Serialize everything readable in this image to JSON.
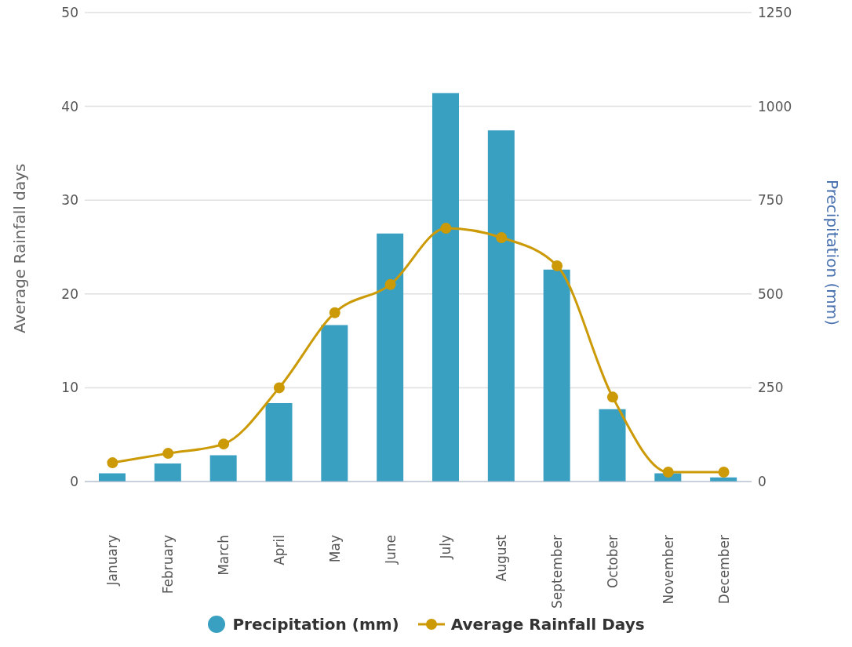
{
  "chart_data": {
    "type": "bar",
    "categories": [
      "January",
      "February",
      "March",
      "April",
      "May",
      "June",
      "July",
      "August",
      "September",
      "October",
      "November",
      "December"
    ],
    "ylabel": "Average Rainfall days",
    "y2label": "Precipitation (mm)",
    "ylim": [
      0,
      50
    ],
    "yticks": [
      0,
      10,
      20,
      30,
      40,
      50
    ],
    "y2lim": [
      0,
      1250
    ],
    "y2ticks": [
      0,
      250,
      500,
      750,
      1000,
      1250
    ],
    "grid": "y",
    "legend": "bottom",
    "marker": "circle",
    "line_style": "solid",
    "series": [
      {
        "name": "Precipitation (mm)",
        "axis": "y2",
        "color": "#3aa0c1",
        "values": [
          22,
          48,
          70,
          209,
          417,
          661,
          1035,
          936,
          565,
          193,
          22,
          11
        ]
      },
      {
        "name": "Average Rainfall Days",
        "type": "line",
        "axis": "y",
        "color": "#cc9a06",
        "values": [
          2,
          3,
          4,
          10,
          18,
          21,
          27,
          26,
          23,
          9,
          1,
          1
        ]
      }
    ]
  }
}
